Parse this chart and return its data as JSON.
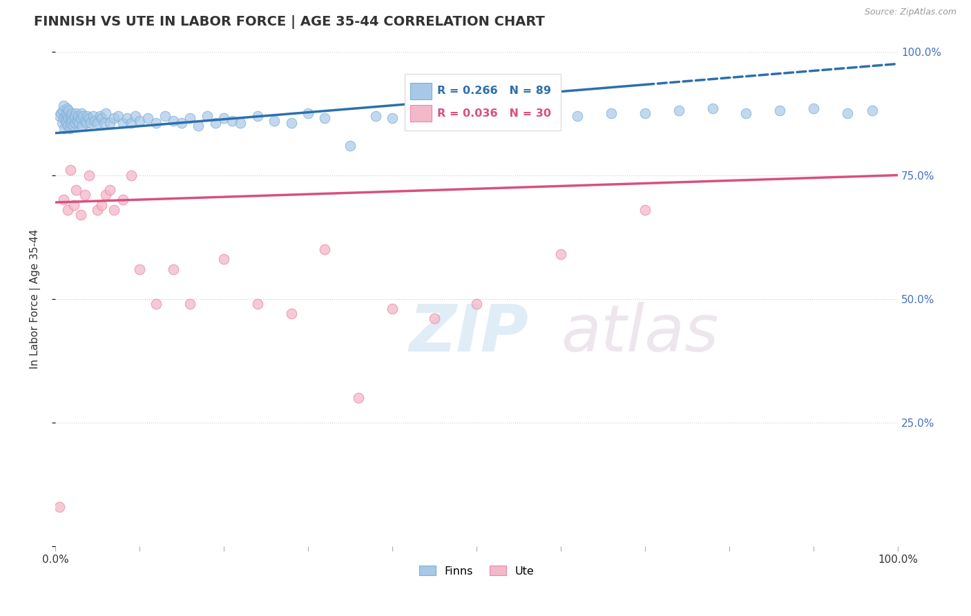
{
  "title": "FINNISH VS UTE IN LABOR FORCE | AGE 35-44 CORRELATION CHART",
  "source": "Source: ZipAtlas.com",
  "ylabel": "In Labor Force | Age 35-44",
  "xlim": [
    0,
    1.0
  ],
  "ylim": [
    0,
    1.0
  ],
  "legend_r_blue": "R = 0.266",
  "legend_n_blue": "N = 89",
  "legend_r_pink": "R = 0.036",
  "legend_n_pink": "N = 30",
  "legend_label_blue": "Finns",
  "legend_label_pink": "Ute",
  "blue_color": "#a8c8e8",
  "blue_edge_color": "#7aafd4",
  "blue_line_color": "#2c6fad",
  "pink_color": "#f4b8c8",
  "pink_edge_color": "#e888a8",
  "pink_line_color": "#d85080",
  "background_color": "#ffffff",
  "watermark_zip": "ZIP",
  "watermark_atlas": "atlas",
  "title_fontsize": 14,
  "axis_label_fontsize": 11,
  "tick_fontsize": 11,
  "blue_trendline_y_start": 0.835,
  "blue_trendline_y_end": 0.975,
  "blue_trendline_solid_end": 0.7,
  "pink_trendline_y_start": 0.695,
  "pink_trendline_y_end": 0.75,
  "blue_scatter_x": [
    0.005,
    0.007,
    0.008,
    0.009,
    0.01,
    0.01,
    0.011,
    0.012,
    0.012,
    0.013,
    0.013,
    0.014,
    0.015,
    0.015,
    0.016,
    0.016,
    0.017,
    0.018,
    0.018,
    0.019,
    0.02,
    0.02,
    0.021,
    0.022,
    0.023,
    0.024,
    0.025,
    0.026,
    0.027,
    0.028,
    0.03,
    0.031,
    0.032,
    0.033,
    0.035,
    0.037,
    0.038,
    0.04,
    0.042,
    0.045,
    0.047,
    0.05,
    0.053,
    0.055,
    0.058,
    0.06,
    0.065,
    0.07,
    0.075,
    0.08,
    0.085,
    0.09,
    0.095,
    0.1,
    0.11,
    0.12,
    0.13,
    0.14,
    0.15,
    0.16,
    0.17,
    0.18,
    0.19,
    0.2,
    0.21,
    0.22,
    0.24,
    0.26,
    0.28,
    0.3,
    0.32,
    0.35,
    0.38,
    0.4,
    0.43,
    0.46,
    0.5,
    0.54,
    0.58,
    0.62,
    0.66,
    0.7,
    0.74,
    0.78,
    0.82,
    0.86,
    0.9,
    0.94,
    0.97
  ],
  "blue_scatter_y": [
    0.87,
    0.875,
    0.855,
    0.88,
    0.89,
    0.865,
    0.845,
    0.87,
    0.86,
    0.875,
    0.855,
    0.885,
    0.87,
    0.85,
    0.865,
    0.88,
    0.845,
    0.87,
    0.855,
    0.865,
    0.875,
    0.86,
    0.85,
    0.865,
    0.87,
    0.855,
    0.875,
    0.86,
    0.87,
    0.855,
    0.865,
    0.875,
    0.85,
    0.87,
    0.86,
    0.855,
    0.87,
    0.865,
    0.855,
    0.87,
    0.86,
    0.855,
    0.87,
    0.865,
    0.855,
    0.875,
    0.855,
    0.865,
    0.87,
    0.855,
    0.865,
    0.855,
    0.87,
    0.86,
    0.865,
    0.855,
    0.87,
    0.86,
    0.855,
    0.865,
    0.85,
    0.87,
    0.855,
    0.865,
    0.86,
    0.855,
    0.87,
    0.86,
    0.855,
    0.875,
    0.865,
    0.81,
    0.87,
    0.865,
    0.875,
    0.87,
    0.865,
    0.875,
    0.88,
    0.87,
    0.875,
    0.875,
    0.88,
    0.885,
    0.875,
    0.88,
    0.885,
    0.875,
    0.88
  ],
  "pink_scatter_x": [
    0.005,
    0.01,
    0.015,
    0.018,
    0.022,
    0.025,
    0.03,
    0.035,
    0.04,
    0.05,
    0.055,
    0.06,
    0.065,
    0.07,
    0.08,
    0.09,
    0.1,
    0.12,
    0.14,
    0.16,
    0.2,
    0.24,
    0.28,
    0.32,
    0.36,
    0.4,
    0.45,
    0.5,
    0.6,
    0.7
  ],
  "pink_scatter_y": [
    0.08,
    0.7,
    0.68,
    0.76,
    0.69,
    0.72,
    0.67,
    0.71,
    0.75,
    0.68,
    0.69,
    0.71,
    0.72,
    0.68,
    0.7,
    0.75,
    0.56,
    0.49,
    0.56,
    0.49,
    0.58,
    0.49,
    0.47,
    0.6,
    0.3,
    0.48,
    0.46,
    0.49,
    0.59,
    0.68
  ]
}
